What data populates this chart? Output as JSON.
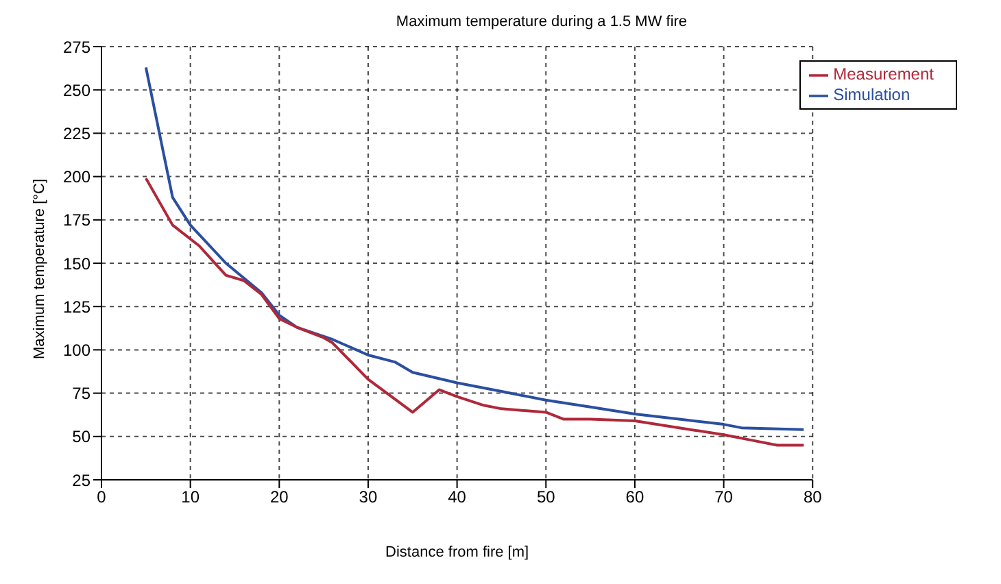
{
  "chart_data": {
    "type": "line",
    "title": "Maximum temperature during a 1.5 MW fire",
    "xlabel": "Distance from fire [m]",
    "ylabel": "Maximum temperature [°C]",
    "xlim": [
      0,
      80
    ],
    "xticks": [
      0,
      10,
      20,
      30,
      40,
      50,
      60,
      70,
      80
    ],
    "ylim": [
      25,
      275
    ],
    "yticks": [
      25,
      50,
      75,
      100,
      125,
      150,
      175,
      200,
      225,
      250,
      275
    ],
    "grid": true,
    "legend": "top right",
    "marker": "none",
    "line_style": "solid",
    "series": [
      {
        "name": "Simulation",
        "color": "#2b4fa0",
        "x": [
          5,
          8,
          10,
          14,
          18,
          20,
          22,
          26,
          30,
          33,
          35,
          40,
          45,
          50,
          55,
          60,
          65,
          70,
          72,
          79
        ],
        "values": [
          263,
          188,
          172,
          150,
          133,
          120,
          113,
          106,
          97,
          93,
          87,
          81,
          76,
          71,
          67,
          63,
          60,
          57,
          55,
          54
        ]
      },
      {
        "name": "Measurement",
        "color": "#b0283a",
        "x": [
          5,
          8,
          11,
          14,
          16,
          18,
          20,
          22,
          25,
          26,
          30,
          35,
          38,
          40,
          43,
          45,
          50,
          52,
          55,
          60,
          65,
          70,
          73,
          76,
          79
        ],
        "values": [
          199,
          172,
          160,
          143,
          140,
          132,
          118,
          113,
          107,
          104,
          83,
          64,
          77,
          73,
          68,
          66,
          64,
          60,
          60,
          59,
          55,
          51,
          48,
          45,
          45
        ]
      }
    ]
  }
}
